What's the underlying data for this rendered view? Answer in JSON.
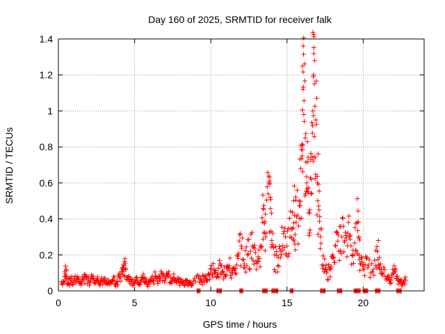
{
  "chart_data": {
    "type": "scatter",
    "title": "Day 160 of 2025, SRMTID for receiver falk",
    "xlabel": "GPS time / hours",
    "ylabel": "SRMTID / TECUs",
    "xlim": [
      0,
      24
    ],
    "ylim": [
      0,
      1.4
    ],
    "xticks": [
      0,
      5,
      10,
      15,
      20
    ],
    "xtick_labels": [
      "0",
      "5",
      "10",
      "15",
      "20"
    ],
    "yticks": [
      0,
      0.2,
      0.4,
      0.6,
      0.8,
      1,
      1.2,
      1.4
    ],
    "ytick_labels": [
      "0",
      "0.2",
      "0.4",
      "0.6",
      "0.8",
      "1",
      "1.2",
      "1.4"
    ],
    "grid": true,
    "marker": "+",
    "color": "#ff0000",
    "series": [
      {
        "name": "SRMTID",
        "points": [
          [
            0.2,
            0.05
          ],
          [
            0.4,
            0.08
          ],
          [
            0.5,
            0.12
          ],
          [
            0.6,
            0.04
          ],
          [
            0.8,
            0.06
          ],
          [
            1.0,
            0.05
          ],
          [
            1.2,
            0.07
          ],
          [
            1.4,
            0.04
          ],
          [
            1.6,
            0.06
          ],
          [
            1.8,
            0.08
          ],
          [
            2.0,
            0.05
          ],
          [
            2.2,
            0.07
          ],
          [
            2.4,
            0.04
          ],
          [
            2.6,
            0.06
          ],
          [
            2.8,
            0.05
          ],
          [
            3.0,
            0.07
          ],
          [
            3.2,
            0.04
          ],
          [
            3.4,
            0.05
          ],
          [
            3.6,
            0.06
          ],
          [
            3.8,
            0.04
          ],
          [
            4.0,
            0.07
          ],
          [
            4.2,
            0.09
          ],
          [
            4.3,
            0.14
          ],
          [
            4.4,
            0.12
          ],
          [
            4.6,
            0.06
          ],
          [
            4.8,
            0.05
          ],
          [
            5.0,
            0.04
          ],
          [
            5.2,
            0.06
          ],
          [
            5.4,
            0.05
          ],
          [
            5.6,
            0.07
          ],
          [
            5.8,
            0.04
          ],
          [
            6.0,
            0.05
          ],
          [
            6.2,
            0.06
          ],
          [
            6.4,
            0.08
          ],
          [
            6.6,
            0.07
          ],
          [
            6.8,
            0.09
          ],
          [
            7.0,
            0.06
          ],
          [
            7.2,
            0.08
          ],
          [
            7.4,
            0.05
          ],
          [
            7.6,
            0.07
          ],
          [
            7.8,
            0.06
          ],
          [
            8.0,
            0.05
          ],
          [
            8.2,
            0.04
          ],
          [
            8.4,
            0.06
          ],
          [
            8.6,
            0.05
          ],
          [
            8.8,
            0.04
          ],
          [
            9.2,
            0.07
          ],
          [
            9.4,
            0.05
          ],
          [
            9.6,
            0.08
          ],
          [
            9.8,
            0.06
          ],
          [
            10.0,
            0.1
          ],
          [
            10.2,
            0.12
          ],
          [
            10.4,
            0.08
          ],
          [
            10.6,
            0.15
          ],
          [
            10.8,
            0.11
          ],
          [
            11.0,
            0.09
          ],
          [
            11.2,
            0.14
          ],
          [
            11.4,
            0.12
          ],
          [
            11.6,
            0.1
          ],
          [
            11.8,
            0.18
          ],
          [
            12.0,
            0.25
          ],
          [
            12.2,
            0.15
          ],
          [
            12.4,
            0.2
          ],
          [
            12.6,
            0.22
          ],
          [
            12.8,
            0.24
          ],
          [
            13.0,
            0.12
          ],
          [
            13.2,
            0.18
          ],
          [
            13.4,
            0.38
          ],
          [
            13.5,
            0.32
          ],
          [
            13.6,
            0.3
          ],
          [
            13.8,
            0.6
          ],
          [
            13.9,
            0.52
          ],
          [
            14.0,
            0.28
          ],
          [
            14.2,
            0.2
          ],
          [
            14.4,
            0.14
          ],
          [
            14.6,
            0.22
          ],
          [
            14.8,
            0.33
          ],
          [
            15.0,
            0.25
          ],
          [
            15.2,
            0.3
          ],
          [
            15.4,
            0.35
          ],
          [
            15.5,
            0.42
          ],
          [
            15.6,
            0.38
          ],
          [
            15.8,
            0.5
          ],
          [
            15.9,
            0.68
          ],
          [
            16.0,
            0.75
          ],
          [
            16.05,
            1.12
          ],
          [
            16.1,
            0.98
          ],
          [
            16.2,
            0.85
          ],
          [
            16.3,
            0.6
          ],
          [
            16.4,
            0.55
          ],
          [
            16.5,
            0.45
          ],
          [
            16.6,
            0.62
          ],
          [
            16.7,
            1.0
          ],
          [
            16.75,
            1.2
          ],
          [
            16.8,
            1.15
          ],
          [
            16.9,
            0.95
          ],
          [
            17.0,
            0.6
          ],
          [
            17.1,
            0.45
          ],
          [
            17.2,
            0.3
          ],
          [
            17.4,
            0.14
          ],
          [
            17.6,
            0.1
          ],
          [
            17.8,
            0.12
          ],
          [
            18.0,
            0.2
          ],
          [
            18.2,
            0.25
          ],
          [
            18.4,
            0.22
          ],
          [
            18.6,
            0.3
          ],
          [
            18.8,
            0.28
          ],
          [
            19.0,
            0.32
          ],
          [
            19.2,
            0.25
          ],
          [
            19.4,
            0.2
          ],
          [
            19.6,
            0.38
          ],
          [
            19.7,
            0.3
          ],
          [
            19.8,
            0.15
          ],
          [
            20.0,
            0.12
          ],
          [
            20.2,
            0.18
          ],
          [
            20.5,
            0.1
          ],
          [
            20.8,
            0.14
          ],
          [
            21.0,
            0.28
          ],
          [
            21.1,
            0.12
          ],
          [
            21.3,
            0.1
          ],
          [
            21.6,
            0.08
          ],
          [
            21.8,
            0.06
          ],
          [
            22.0,
            0.1
          ],
          [
            22.2,
            0.08
          ],
          [
            22.4,
            0.05
          ],
          [
            22.6,
            0.04
          ],
          [
            22.8,
            0.06
          ]
        ]
      }
    ],
    "zero_clusters": [
      [
        9.1,
        9.3
      ],
      [
        10.4,
        10.7
      ],
      [
        11.9,
        12.1
      ],
      [
        13.4,
        13.7
      ],
      [
        14.0,
        14.4
      ],
      [
        15.2,
        15.4
      ],
      [
        17.2,
        17.5
      ],
      [
        18.3,
        18.6
      ],
      [
        19.4,
        19.8
      ],
      [
        20.0,
        20.3
      ],
      [
        20.8,
        21.1
      ],
      [
        22.2,
        22.5
      ]
    ]
  }
}
